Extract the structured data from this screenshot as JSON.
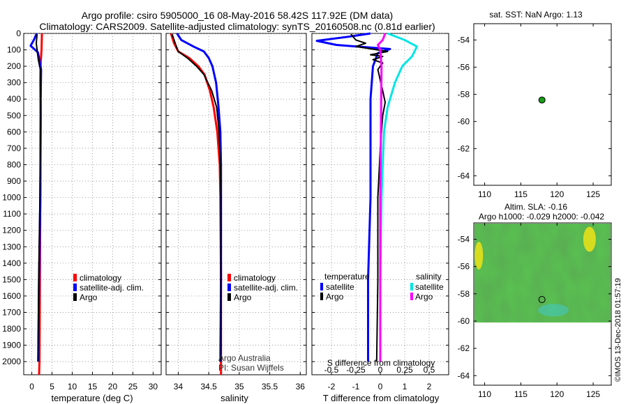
{
  "header": {
    "line1": "Argo profile: csiro 5905000_16 08-May-2016 58.42S 117.92E (DM data)",
    "line2": "Climatology: CARS2009. Satellite-adjusted climatology: synTS_20160508.nc (0.81d earlier)"
  },
  "colors": {
    "climatology": "#ff0000",
    "satellite": "#0000ff",
    "argo": "#000000",
    "satellite_salinity": "#00e5e5",
    "argo_salinity": "#ff00ff",
    "marker": "#1a9e1a"
  },
  "depth_ticks": [
    "0",
    "100",
    "200",
    "300",
    "400",
    "500",
    "600",
    "700",
    "800",
    "900",
    "1000",
    "1100",
    "1200",
    "1300",
    "1400",
    "1500",
    "1600",
    "1700",
    "1800",
    "1900",
    "2000"
  ],
  "chart_data": [
    {
      "type": "line",
      "id": "temperature",
      "xlabel": "temperature (deg C)",
      "xlim": [
        -2,
        32
      ],
      "ylim": [
        0,
        2080
      ],
      "y_inverted": true,
      "grid": true,
      "xticks": [
        {
          "v": 0,
          "l": "0"
        },
        {
          "v": 5,
          "l": "5"
        },
        {
          "v": 10,
          "l": "10"
        },
        {
          "v": 15,
          "l": "15"
        },
        {
          "v": 20,
          "l": "20"
        },
        {
          "v": 25,
          "l": "25"
        },
        {
          "v": 30,
          "l": "30"
        }
      ],
      "legend": {
        "placement": "bottom-right",
        "entries": [
          {
            "label": "climatology",
            "color": "climatology"
          },
          {
            "label": "satellite-adj. clim.",
            "color": "satellite"
          },
          {
            "label": "Argo",
            "color": "argo"
          }
        ]
      },
      "series": [
        {
          "name": "climatology",
          "color": "climatology",
          "width": 3,
          "points": [
            [
              2.5,
              0
            ],
            [
              2.4,
              100
            ],
            [
              2.2,
              180
            ],
            [
              2.1,
              300
            ],
            [
              2.2,
              500
            ],
            [
              2.1,
              1000
            ],
            [
              2.0,
              1500
            ],
            [
              1.9,
              2000
            ],
            [
              1.8,
              2080
            ]
          ]
        },
        {
          "name": "satellite-adj. clim.",
          "color": "satellite",
          "width": 3,
          "points": [
            [
              1.2,
              0
            ],
            [
              0.5,
              40
            ],
            [
              -0.3,
              75
            ],
            [
              1.5,
              115
            ],
            [
              1.8,
              150
            ],
            [
              2.3,
              220
            ],
            [
              2.2,
              400
            ],
            [
              2.1,
              1000
            ],
            [
              1.8,
              1500
            ],
            [
              1.6,
              2000
            ]
          ]
        },
        {
          "name": "Argo",
          "color": "argo",
          "width": 2,
          "points": [
            [
              1.3,
              5
            ],
            [
              1.1,
              60
            ],
            [
              1.4,
              120
            ],
            [
              1.6,
              160
            ],
            [
              2.1,
              220
            ],
            [
              2.2,
              500
            ],
            [
              2.0,
              1000
            ],
            [
              1.7,
              1500
            ],
            [
              1.5,
              2000
            ]
          ]
        }
      ]
    },
    {
      "type": "line",
      "id": "salinity",
      "xlabel": "salinity",
      "xlim": [
        33.8,
        36.1
      ],
      "ylim": [
        0,
        2080
      ],
      "y_inverted": true,
      "grid": true,
      "xticks": [
        {
          "v": 34,
          "l": "34"
        },
        {
          "v": 34.5,
          "l": "34.5"
        },
        {
          "v": 35,
          "l": "35"
        },
        {
          "v": 35.5,
          "l": "35.5"
        },
        {
          "v": 36,
          "l": "36"
        }
      ],
      "legend": {
        "placement": "bottom-right",
        "entries": [
          {
            "label": "climatology",
            "color": "climatology"
          },
          {
            "label": "satellite-adj. clim.",
            "color": "satellite"
          },
          {
            "label": "Argo",
            "color": "argo"
          }
        ]
      },
      "credits": [
        "Argo Australia",
        "PI: Susan Wijffels"
      ],
      "series": [
        {
          "name": "climatology",
          "color": "climatology",
          "width": 3,
          "points": [
            [
              33.88,
              0
            ],
            [
              33.93,
              60
            ],
            [
              34.0,
              110
            ],
            [
              34.18,
              150
            ],
            [
              34.33,
              200
            ],
            [
              34.43,
              250
            ],
            [
              34.52,
              350
            ],
            [
              34.58,
              450
            ],
            [
              34.64,
              600
            ],
            [
              34.68,
              800
            ],
            [
              34.69,
              1000
            ],
            [
              34.7,
              1500
            ],
            [
              34.7,
              2080
            ]
          ]
        },
        {
          "name": "satellite-adj. clim.",
          "color": "satellite",
          "width": 3,
          "points": [
            [
              33.98,
              0
            ],
            [
              34.05,
              40
            ],
            [
              34.25,
              80
            ],
            [
              34.42,
              110
            ],
            [
              34.5,
              150
            ],
            [
              34.56,
              200
            ],
            [
              34.62,
              300
            ],
            [
              34.66,
              450
            ],
            [
              34.69,
              600
            ],
            [
              34.7,
              800
            ],
            [
              34.7,
              1500
            ],
            [
              34.69,
              2000
            ]
          ]
        },
        {
          "name": "Argo",
          "color": "argo",
          "width": 2,
          "points": [
            [
              33.9,
              5
            ],
            [
              33.95,
              60
            ],
            [
              34.0,
              110
            ],
            [
              34.15,
              150
            ],
            [
              34.3,
              200
            ],
            [
              34.42,
              250
            ],
            [
              34.55,
              350
            ],
            [
              34.63,
              450
            ],
            [
              34.67,
              600
            ],
            [
              34.69,
              800
            ],
            [
              34.7,
              1000
            ],
            [
              34.7,
              1500
            ],
            [
              34.7,
              2000
            ]
          ]
        }
      ]
    },
    {
      "type": "line",
      "id": "difference",
      "xlabel": "T difference from climatology",
      "xlabel_top": "S difference from climatology",
      "xlim": [
        -2.8,
        2.8
      ],
      "ylim": [
        0,
        2080
      ],
      "y_inverted": true,
      "grid": true,
      "xticks": [
        {
          "v": -2,
          "l": "-2"
        },
        {
          "v": -1,
          "l": "-1"
        },
        {
          "v": 0,
          "l": "0"
        },
        {
          "v": 1,
          "l": "1"
        },
        {
          "v": 2,
          "l": "2"
        }
      ],
      "xticks_salinity": [
        {
          "v": -0.5,
          "l": "-0.5"
        },
        {
          "v": -0.25,
          "l": "-0.25"
        },
        {
          "v": 0,
          "l": "0"
        },
        {
          "v": 0.25,
          "l": "0.25"
        },
        {
          "v": 0.5,
          "l": "0.5"
        }
      ],
      "salinity_scale": 4,
      "legend": {
        "placement": "bottom",
        "groups": [
          {
            "title": "temperature",
            "entries": [
              {
                "label": "satellite",
                "color": "satellite"
              },
              {
                "label": "Argo",
                "color": "argo"
              }
            ]
          },
          {
            "title": "salinity",
            "entries": [
              {
                "label": "satellite",
                "color": "satellite_salinity"
              },
              {
                "label": "Argo",
                "color": "argo_salinity"
              }
            ]
          }
        ]
      },
      "series": [
        {
          "name": "T satellite",
          "color": "satellite",
          "width": 3,
          "points": [
            [
              -0.4,
              0
            ],
            [
              -1.3,
              20
            ],
            [
              -2.6,
              45
            ],
            [
              -1.8,
              70
            ],
            [
              0.4,
              95
            ],
            [
              -0.1,
              120
            ],
            [
              -0.3,
              200
            ],
            [
              -0.4,
              400
            ],
            [
              -0.4,
              1000
            ],
            [
              -0.5,
              1500
            ],
            [
              -0.5,
              2000
            ]
          ]
        },
        {
          "name": "T Argo",
          "color": "argo",
          "width": 2,
          "points": [
            [
              -1.2,
              5
            ],
            [
              -1.0,
              40
            ],
            [
              -0.6,
              60
            ],
            [
              -1.0,
              80
            ],
            [
              0.3,
              110
            ],
            [
              -0.4,
              130
            ],
            [
              0.1,
              140
            ],
            [
              -0.3,
              160
            ],
            [
              0.1,
              180
            ],
            [
              -0.1,
              220
            ],
            [
              0.1,
              350
            ],
            [
              0.2,
              420
            ],
            [
              0.1,
              500
            ],
            [
              0.0,
              700
            ],
            [
              -0.1,
              1000
            ],
            [
              -0.1,
              1500
            ],
            [
              -0.15,
              2000
            ]
          ]
        },
        {
          "name": "S satellite",
          "color": "satellite_salinity",
          "width": 3,
          "points": [
            [
              0.3,
              0
            ],
            [
              1.0,
              40
            ],
            [
              1.5,
              80
            ],
            [
              1.3,
              140
            ],
            [
              0.9,
              200
            ],
            [
              0.6,
              300
            ],
            [
              0.3,
              450
            ],
            [
              0.15,
              600
            ],
            [
              0.1,
              800
            ],
            [
              0.05,
              1000
            ],
            [
              0.0,
              1500
            ],
            [
              0.0,
              2000
            ]
          ]
        },
        {
          "name": "S Argo",
          "color": "argo_salinity",
          "width": 3,
          "points": [
            [
              0.2,
              0
            ],
            [
              0.1,
              40
            ],
            [
              -0.1,
              70
            ],
            [
              0.0,
              100
            ],
            [
              0.05,
              200
            ],
            [
              0.0,
              1000
            ],
            [
              0.0,
              2000
            ]
          ]
        }
      ]
    },
    {
      "type": "scatter",
      "id": "sst-map",
      "title": "sat. SST: NaN Argo: 1.13",
      "xlim": [
        108.5,
        127.5
      ],
      "ylim": [
        -64.7,
        -52.8
      ],
      "xticks": [
        "110",
        "115",
        "120",
        "125"
      ],
      "yticks": [
        "-54",
        "-56",
        "-58",
        "-60",
        "-62",
        "-64"
      ],
      "points": [
        {
          "lon": 117.92,
          "lat": -58.42
        }
      ]
    },
    {
      "type": "heatmap",
      "id": "sla-map",
      "title_lines": [
        "Altim. SLA: -0.16",
        "Argo h1000: -0.029 h2000: -0.042"
      ],
      "xlim": [
        108.5,
        127.5
      ],
      "ylim": [
        -64.7,
        -52.8
      ],
      "xticks": [
        "110",
        "115",
        "120",
        "125"
      ],
      "yticks": [
        "-54",
        "-56",
        "-58",
        "-60",
        "-62",
        "-64"
      ],
      "data_lat_range": [
        -60.1,
        -52.8
      ],
      "points": [
        {
          "lon": 117.92,
          "lat": -58.42
        }
      ]
    }
  ],
  "footer": {
    "stamp": "©IMOS 13-Dec-2018 01:57:19"
  }
}
